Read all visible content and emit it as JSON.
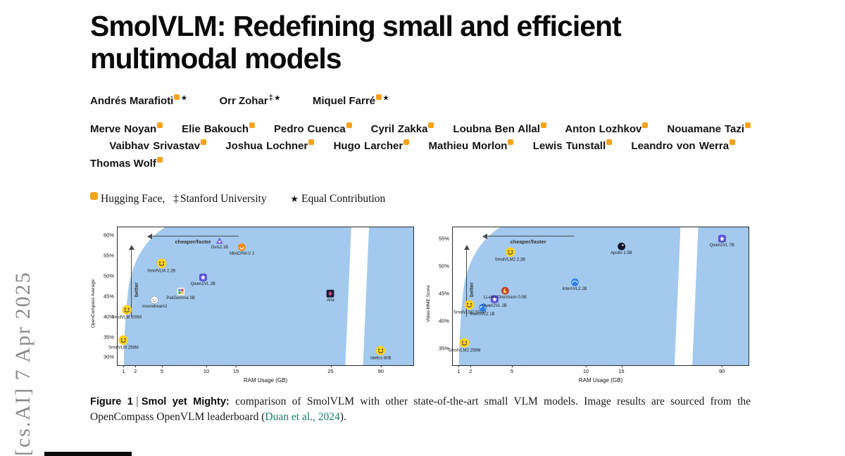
{
  "banner": {
    "text": "[cs.AI] 7 Apr 2025"
  },
  "title": "SmolVLM: Redefining small and efficient multimodal models",
  "symbols": {
    "star": "★",
    "stanford": "‡"
  },
  "authors": {
    "primary": [
      {
        "name": "Andrés Marafioti",
        "marks": [
          "hf",
          "star"
        ]
      },
      {
        "name": "Orr Zohar",
        "marks": [
          "stanford",
          "star"
        ]
      },
      {
        "name": "Miquel Farré",
        "marks": [
          "hf",
          "star"
        ]
      }
    ],
    "secondary": [
      {
        "name": "Merve Noyan",
        "marks": [
          "hf"
        ]
      },
      {
        "name": "Elie Bakouch",
        "marks": [
          "hf"
        ]
      },
      {
        "name": "Pedro Cuenca",
        "marks": [
          "hf"
        ]
      },
      {
        "name": "Cyril Zakka",
        "marks": [
          "hf"
        ]
      },
      {
        "name": "Loubna Ben Allal",
        "marks": [
          "hf"
        ]
      },
      {
        "name": "Anton Lozhkov",
        "marks": [
          "hf"
        ]
      },
      {
        "name": "Nouamane Tazi",
        "marks": [
          "hf"
        ]
      },
      {
        "name": "Vaibhav Srivastav",
        "marks": [
          "hf"
        ]
      },
      {
        "name": "Joshua Lochner",
        "marks": [
          "hf"
        ]
      },
      {
        "name": "Hugo Larcher",
        "marks": [
          "hf"
        ]
      },
      {
        "name": "Mathieu Morlon",
        "marks": [
          "hf"
        ]
      },
      {
        "name": "Lewis Tunstall",
        "marks": [
          "hf"
        ]
      },
      {
        "name": "Leandro von Werra",
        "marks": [
          "hf"
        ]
      },
      {
        "name": "Thomas Wolf",
        "marks": [
          "hf"
        ]
      }
    ]
  },
  "affiliations": {
    "hf": "Hugging Face,",
    "stanford": "Stanford University",
    "equal": "Equal Contribution"
  },
  "figure": {
    "caption": {
      "label": "Figure 1",
      "pipe": "|",
      "title": "Smol yet Mighty:",
      "body": "comparison of SmolVLM with other state-of-the-art small VLM models. Image results are sourced from the OpenCompass OpenVLM leaderboard (",
      "citation": "Duan et al., 2024",
      "close": ")."
    }
  },
  "colors": {
    "chart_region_blue": "#a3c9ee",
    "citation_teal": "#17806d",
    "hf_orange": "#f6a21d"
  },
  "chart_data": [
    {
      "type": "scatter",
      "title": "",
      "xlabel": "RAM Usage (GB)",
      "ylabel": "OpenCompass Average",
      "x_scale": "log (broken axis)",
      "xticks": [
        1,
        2,
        5,
        10,
        15,
        25,
        90
      ],
      "yticks": [
        30,
        35,
        40,
        45,
        50,
        55,
        60
      ],
      "ytick_suffix": "%",
      "ylim": [
        28,
        62
      ],
      "grid": false,
      "annotations": {
        "horizontal": "cheaper/faster",
        "vertical": "better"
      },
      "points": [
        {
          "label": "SmolVLM 256M",
          "x": 0.9,
          "y": 33.5,
          "icon": "hf-logo"
        },
        {
          "label": "SmolVLM 500M",
          "x": 1.2,
          "y": 41,
          "icon": "hf-logo"
        },
        {
          "label": "SmolVLM 2.2B",
          "x": 4.9,
          "y": 52.5,
          "icon": "hf-logo"
        },
        {
          "label": "moondream2",
          "x": 3.9,
          "y": 43.5,
          "icon": "moondream-logo"
        },
        {
          "label": "PaliGemma 3B",
          "x": 6.7,
          "y": 45.5,
          "icon": "paligemma-logo"
        },
        {
          "label": "Qwen2VL 2B",
          "x": 9.5,
          "y": 49,
          "icon": "qwen-logo"
        },
        {
          "label": "Ovis2 1B",
          "x": 12,
          "y": 58,
          "icon": "ovis-logo"
        },
        {
          "label": "MiniCPM-V 2",
          "x": 15.5,
          "y": 56.5,
          "icon": "minicpm-logo"
        },
        {
          "label": "Aria",
          "x": 25,
          "y": 45,
          "icon": "aria-logo"
        },
        {
          "label": "Idefics 80B",
          "x": 90,
          "y": 31,
          "icon": "hf-logo"
        }
      ]
    },
    {
      "type": "scatter",
      "title": "",
      "xlabel": "RAM Usage (GB)",
      "ylabel": "Video-MME Score",
      "x_scale": "log (broken axis)",
      "xticks": [
        1,
        2,
        5,
        10,
        15,
        90
      ],
      "yticks": [
        35,
        40,
        45,
        50,
        55
      ],
      "ytick_suffix": "%",
      "ylim": [
        32,
        57
      ],
      "grid": false,
      "annotations": {
        "horizontal": "cheaper/faster",
        "vertical": "better"
      },
      "points": [
        {
          "label": "SmolVLM2 256M",
          "x": 1.4,
          "y": 35.5,
          "icon": "hf-logo"
        },
        {
          "label": "SmolVLM2 500M",
          "x": 1.9,
          "y": 42.5,
          "icon": "hf-logo"
        },
        {
          "label": "SmolVLM2 2.2B",
          "x": 4.8,
          "y": 52,
          "icon": "hf-logo"
        },
        {
          "label": "InternVL2 1B",
          "x": 2.6,
          "y": 42,
          "icon": "internvl-logo"
        },
        {
          "label": "Qwen2VL 2B",
          "x": 3.4,
          "y": 43.5,
          "icon": "qwen-logo"
        },
        {
          "label": "LLaVA-OneVision 0.5B",
          "x": 4.3,
          "y": 45,
          "icon": "llava-logo"
        },
        {
          "label": "InternVL2 2B",
          "x": 9,
          "y": 46.5,
          "icon": "internvl-logo"
        },
        {
          "label": "Apollo 1.5B",
          "x": 15,
          "y": 53,
          "icon": "apollo-logo"
        },
        {
          "label": "Qwen2VL 7B",
          "x": 90,
          "y": 54.5,
          "icon": "qwen-logo"
        }
      ]
    }
  ]
}
